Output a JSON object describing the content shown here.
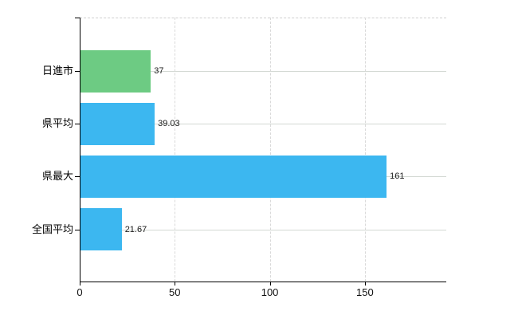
{
  "chart_data": {
    "type": "bar",
    "orientation": "horizontal",
    "title": "",
    "xlabel": "",
    "ylabel": "",
    "categories": [
      "日進市",
      "県平均",
      "県最大",
      "全国平均"
    ],
    "values": [
      37,
      39.03,
      161,
      21.67
    ],
    "value_labels": [
      "37",
      "39.03",
      "161",
      "21.67"
    ],
    "bar_colors": [
      "#6dcb83",
      "#3cb7f0",
      "#3cb7f0",
      "#3cb7f0"
    ],
    "x_tick_labels": [
      "0",
      "50",
      "100",
      "150"
    ],
    "x_tick_values": [
      0,
      50,
      100,
      150
    ],
    "xlim": [
      0,
      192.8
    ],
    "grid": true,
    "legend": "none",
    "colors": {
      "bar_default": "#3cb7f0",
      "bar_highlight": "#6dcb83",
      "axis": "#000000",
      "gridline": "#d9d9d9",
      "category_line": "#d3d8d3",
      "text": "#1a1a1a",
      "background": "#ffffff"
    }
  }
}
